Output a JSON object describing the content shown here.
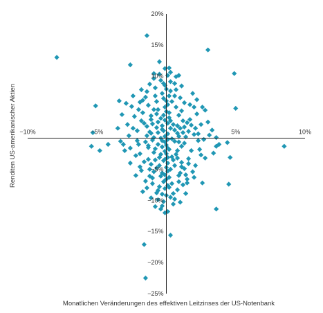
{
  "chart_data": {
    "type": "scatter",
    "xlabel": "Monatlichen Veränderungen des effektiven Leitzinses der US-Notenbank",
    "ylabel": "Renditen US-amerikanischer Aktien",
    "xlim": [
      -10,
      10
    ],
    "ylim": [
      -25,
      20
    ],
    "x_ticks": [
      -10,
      -5,
      5,
      10
    ],
    "x_tick_labels": [
      "−10%",
      "−5%",
      "5%",
      "10%"
    ],
    "y_ticks": [
      20,
      15,
      10,
      -5,
      -10,
      -15,
      -20,
      -25
    ],
    "y_tick_labels": [
      "20%",
      "15%",
      "10%",
      "−5%",
      "−10%",
      "−15%",
      "−20%",
      "−25%"
    ],
    "grid": false,
    "marker": "diamond",
    "colors": {
      "point": "#2097B4",
      "axis": "#222222",
      "text": "#333333"
    },
    "points": [
      [
        -7.9,
        13.0
      ],
      [
        -1.4,
        16.5
      ],
      [
        -2.6,
        11.8
      ],
      [
        -0.5,
        12.3
      ],
      [
        3.0,
        14.2
      ],
      [
        4.9,
        10.4
      ],
      [
        -5.1,
        5.2
      ],
      [
        -3.4,
        6.0
      ],
      [
        -0.1,
        11.2
      ],
      [
        0.2,
        11.3
      ],
      [
        5.0,
        4.8
      ],
      [
        2.6,
        5.0
      ],
      [
        -5.3,
        0.9
      ],
      [
        -4.2,
        -1.0
      ],
      [
        -3.1,
        -1.0
      ],
      [
        -5.4,
        -1.3
      ],
      [
        -4.8,
        -2.0
      ],
      [
        -0.6,
        4.6
      ],
      [
        3.1,
        0.5
      ],
      [
        2.3,
        -0.4
      ],
      [
        4.4,
        -0.7
      ],
      [
        8.5,
        -1.3
      ],
      [
        3.6,
        -1.3
      ],
      [
        4.6,
        -3.1
      ],
      [
        2.8,
        -3.2
      ],
      [
        2.6,
        -7.2
      ],
      [
        4.5,
        -7.4
      ],
      [
        3.6,
        -11.4
      ],
      [
        -0.3,
        -10.9
      ],
      [
        -0.1,
        -12.0
      ],
      [
        -1.6,
        -17.1
      ],
      [
        -1.5,
        -22.5
      ],
      [
        0.3,
        -15.6
      ],
      [
        -1.3,
        -1.5
      ],
      [
        -1.9,
        -2.5
      ],
      [
        1.6,
        -3.3
      ],
      [
        -1.5,
        6.6
      ],
      [
        -1.9,
        5.8
      ],
      [
        1.7,
        5.4
      ],
      [
        1.0,
        6.5
      ],
      [
        -0.8,
        6.8
      ],
      [
        0.6,
        8.8
      ],
      [
        -1.7,
        4.1
      ],
      [
        -1.1,
        3.0
      ],
      [
        1.2,
        2.8
      ],
      [
        -2.1,
        1.2
      ],
      [
        -1.4,
        0.4
      ],
      [
        0.9,
        -0.6
      ],
      [
        -1.0,
        -0.3
      ],
      [
        1.4,
        0.2
      ],
      [
        -0.3,
        -0.4
      ],
      [
        -1.8,
        -5.2
      ],
      [
        -1.2,
        -6.1
      ],
      [
        1.4,
        -5.9
      ],
      [
        -0.6,
        -8.4
      ],
      [
        0.5,
        -8.9
      ],
      [
        1.0,
        -10.3
      ],
      [
        -1.1,
        -9.6
      ],
      [
        1.5,
        -6.6
      ],
      [
        -0.8,
        8.1
      ],
      [
        -0.1,
        8.5
      ],
      [
        0.3,
        7.6
      ],
      [
        -0.4,
        9.3
      ],
      [
        0.1,
        10.1
      ],
      [
        -1.4,
        7.5
      ],
      [
        0.7,
        7.8
      ],
      [
        -0.3,
        -1.4
      ],
      [
        0.2,
        -1.8
      ],
      [
        -0.4,
        -2.6
      ],
      [
        0.4,
        -3.0
      ],
      [
        -0.2,
        -3.6
      ],
      [
        0.1,
        -4.0
      ],
      [
        -0.5,
        -4.4
      ],
      [
        0.3,
        -5.0
      ],
      [
        -0.3,
        -5.6
      ],
      [
        0.2,
        -6.3
      ],
      [
        -0.1,
        -6.8
      ],
      [
        0.4,
        -7.3
      ],
      [
        -0.5,
        -7.8
      ],
      [
        0.0,
        -9.2
      ],
      [
        -0.2,
        -10.2
      ],
      [
        -0.8,
        -11.0
      ],
      [
        0.6,
        -9.8
      ],
      [
        -0.7,
        -8.8
      ],
      [
        0.8,
        0.8
      ],
      [
        1.1,
        -1.3
      ],
      [
        -0.7,
        1.7
      ],
      [
        -1.2,
        1.0
      ],
      [
        1.3,
        1.8
      ],
      [
        -1.5,
        -0.6
      ],
      [
        0.5,
        2.2
      ],
      [
        -0.4,
        3.2
      ],
      [
        0.2,
        4.1
      ],
      [
        0.7,
        5.0
      ],
      [
        -0.9,
        4.6
      ],
      [
        0.4,
        5.9
      ],
      [
        -0.2,
        6.4
      ],
      [
        0.9,
        3.7
      ],
      [
        -0.6,
        2.6
      ],
      [
        1.6,
        1.1
      ],
      [
        -1.6,
        2.4
      ],
      [
        2.0,
        0.6
      ],
      [
        -2.0,
        -1.0
      ],
      [
        1.8,
        -2.0
      ],
      [
        -0.9,
        -2.3
      ],
      [
        0.7,
        -2.6
      ],
      [
        -1.3,
        -3.4
      ],
      [
        1.1,
        -3.9
      ],
      [
        -0.7,
        -4.8
      ],
      [
        0.6,
        -4.4
      ],
      [
        1.3,
        -4.9
      ],
      [
        -1.0,
        -6.4
      ],
      [
        0.9,
        -7.0
      ],
      [
        -0.4,
        -6.1
      ],
      [
        -0.1,
        0.3
      ],
      [
        0.1,
        0.7
      ],
      [
        -0.2,
        1.2
      ],
      [
        0.3,
        1.6
      ],
      [
        -0.3,
        2.0
      ],
      [
        0.1,
        2.4
      ],
      [
        -0.1,
        2.9
      ],
      [
        0.2,
        3.3
      ],
      [
        -0.2,
        3.7
      ],
      [
        0.0,
        4.3
      ],
      [
        -0.1,
        5.0
      ],
      [
        0.1,
        5.4
      ],
      [
        0.0,
        6.0
      ],
      [
        0.2,
        6.8
      ],
      [
        -0.3,
        7.2
      ],
      [
        0.0,
        7.9
      ],
      [
        0.1,
        -0.2
      ],
      [
        -0.1,
        -0.6
      ],
      [
        0.0,
        -1.1
      ],
      [
        0.1,
        -1.6
      ],
      [
        -0.1,
        -2.1
      ],
      [
        0.0,
        -2.5
      ],
      [
        0.1,
        -3.1
      ],
      [
        -0.1,
        -3.4
      ],
      [
        0.0,
        -4.7
      ],
      [
        0.1,
        -5.3
      ],
      [
        -0.1,
        -5.9
      ],
      [
        0.0,
        -6.6
      ],
      [
        0.1,
        -7.6
      ],
      [
        -0.1,
        -8.1
      ],
      [
        -2.3,
        3.5
      ],
      [
        -2.5,
        5.1
      ],
      [
        2.2,
        3.9
      ],
      [
        2.5,
        2.2
      ],
      [
        -2.7,
        0.4
      ],
      [
        2.7,
        -0.2
      ],
      [
        -2.2,
        -2.8
      ],
      [
        2.4,
        -1.8
      ],
      [
        -2.6,
        -4.0
      ],
      [
        2.1,
        -4.4
      ],
      [
        -1.8,
        7.8
      ],
      [
        1.9,
        7.2
      ],
      [
        -2.8,
        2.2
      ],
      [
        3.0,
        2.6
      ],
      [
        -3.2,
        3.8
      ],
      [
        3.3,
        1.3
      ],
      [
        -3.0,
        -2.0
      ],
      [
        3.4,
        -2.4
      ],
      [
        -2.4,
        6.8
      ],
      [
        2.2,
        6.2
      ],
      [
        -1.2,
        8.7
      ],
      [
        1.1,
        8.4
      ],
      [
        -0.9,
        9.6
      ],
      [
        0.7,
        9.9
      ],
      [
        -0.5,
        10.3
      ],
      [
        0.3,
        10.6
      ],
      [
        -1.0,
        -7.3
      ],
      [
        0.8,
        -8.3
      ],
      [
        -1.4,
        -8.0
      ],
      [
        1.2,
        -7.5
      ],
      [
        -0.6,
        0.9
      ],
      [
        0.6,
        1.3
      ],
      [
        -0.8,
        -1.7
      ],
      [
        0.8,
        -2.0
      ],
      [
        -0.5,
        -3.1
      ],
      [
        0.5,
        -3.5
      ],
      [
        -1.1,
        3.6
      ],
      [
        1.1,
        4.4
      ],
      [
        -1.3,
        5.3
      ],
      [
        1.3,
        5.7
      ],
      [
        -0.7,
        5.9
      ],
      [
        0.6,
        6.8
      ],
      [
        -1.6,
        -3.8
      ],
      [
        1.6,
        -4.1
      ],
      [
        -1.9,
        -4.6
      ],
      [
        1.9,
        -5.4
      ],
      [
        -1.2,
        -5.0
      ],
      [
        1.0,
        -5.6
      ],
      [
        -0.4,
        0.0
      ],
      [
        0.4,
        -0.1
      ],
      [
        -0.6,
        -1.0
      ],
      [
        0.6,
        -0.5
      ],
      [
        -0.3,
        1.4
      ],
      [
        0.3,
        2.8
      ],
      [
        -0.7,
        3.9
      ],
      [
        0.8,
        2.0
      ],
      [
        -1.0,
        2.3
      ],
      [
        1.0,
        1.6
      ],
      [
        -1.3,
        -1.2
      ],
      [
        1.3,
        -0.8
      ],
      [
        -2.0,
        4.6
      ],
      [
        2.0,
        5.0
      ],
      [
        -1.7,
        6.1
      ],
      [
        1.7,
        3.0
      ],
      [
        -2.1,
        -0.4
      ],
      [
        2.1,
        1.6
      ],
      [
        -0.2,
        -7.0
      ],
      [
        0.2,
        -7.9
      ],
      [
        -0.3,
        -9.0
      ],
      [
        0.3,
        -9.5
      ],
      [
        -0.6,
        -9.9
      ],
      [
        0.5,
        -10.6
      ],
      [
        -0.9,
        -5.4
      ],
      [
        0.9,
        -6.0
      ],
      [
        -1.1,
        -4.2
      ],
      [
        1.1,
        -4.6
      ],
      [
        -0.8,
        -3.5
      ],
      [
        0.8,
        -3.2
      ],
      [
        -2.9,
        5.6
      ],
      [
        2.8,
        4.5
      ],
      [
        -3.5,
        1.6
      ],
      [
        3.6,
        0.1
      ],
      [
        -3.3,
        -0.5
      ],
      [
        3.8,
        -1.0
      ],
      [
        -0.9,
        0.1
      ],
      [
        0.9,
        0.3
      ],
      [
        -1.1,
        0.8
      ],
      [
        1.2,
        0.9
      ],
      [
        -1.4,
        1.9
      ],
      [
        1.5,
        2.5
      ],
      [
        -0.2,
        8.8
      ],
      [
        0.3,
        9.1
      ],
      [
        -0.4,
        -11.4
      ],
      [
        0.1,
        -11.8
      ],
      [
        -0.9,
        10.4
      ],
      [
        0.9,
        10.1
      ],
      [
        -1.8,
        2.8
      ],
      [
        1.8,
        2.1
      ],
      [
        -2.4,
        1.6
      ],
      [
        2.3,
        0.7
      ],
      [
        -2.6,
        -1.6
      ],
      [
        2.5,
        -2.7
      ],
      [
        -1.5,
        -6.9
      ],
      [
        1.5,
        -7.2
      ],
      [
        -1.7,
        -8.6
      ],
      [
        1.4,
        -8.9
      ],
      [
        -2.2,
        -6.0
      ],
      [
        2.0,
        -6.3
      ]
    ]
  }
}
